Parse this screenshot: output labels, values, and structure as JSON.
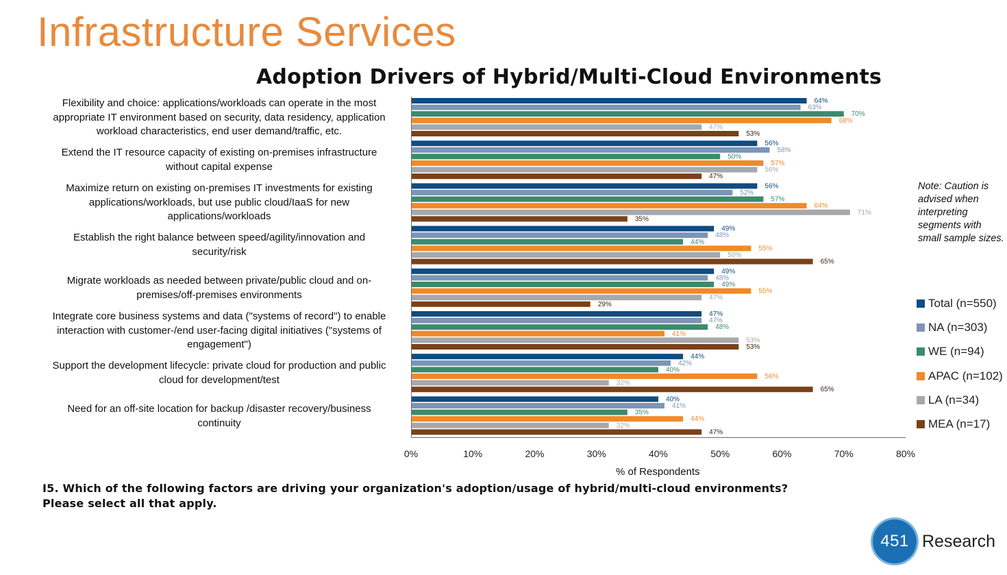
{
  "slide": {
    "title": "Infrastructure Services",
    "title_color": "#e88a3c"
  },
  "note": "Note: Caution is advised when interpreting segments with small sample sizes.",
  "question": {
    "line1": "I5. Which of the following factors are driving your organization's adoption/usage of hybrid/multi-cloud environments?",
    "line2": "Please select all that apply."
  },
  "logo": {
    "number": "451",
    "word": "Research"
  },
  "chart_data": {
    "type": "bar",
    "orientation": "horizontal",
    "title": "Adoption Drivers of Hybrid/Multi-Cloud Environments",
    "xlabel": "% of Respondents",
    "ylabel": "",
    "xlim": [
      0,
      80
    ],
    "x_ticks": [
      "0%",
      "10%",
      "20%",
      "30%",
      "40%",
      "50%",
      "60%",
      "70%",
      "80%"
    ],
    "grid": false,
    "legend_position": "right",
    "categories": [
      [
        "Flexibility and choice: applications/workloads can operate in the most",
        "appropriate IT environment based on security, data residency, application",
        "workload characteristics, end user demand/traffic, etc."
      ],
      [
        "Extend the IT resource capacity of existing on-premises infrastructure",
        "without capital expense"
      ],
      [
        "Maximize return on existing on-premises IT investments for existing",
        "applications/workloads, but use public cloud/IaaS for new",
        "applications/workloads"
      ],
      [
        "Establish the right balance between speed/agility/innovation and",
        "security/risk"
      ],
      [
        "Migrate workloads as needed between private/public cloud and on-",
        "premises/off-premises environments"
      ],
      [
        "Integrate core business systems and data (\"systems of record\") to enable",
        "interaction with customer-/end user-facing digital initiatives (\"systems of",
        "engagement\")"
      ],
      [
        "Support the development lifecycle: private cloud  for production and public",
        "cloud for development/test"
      ],
      [
        "Need for an off-site location for backup /disaster recovery/business",
        "continuity"
      ]
    ],
    "series": [
      {
        "name": "Total (n=550)",
        "color": "#0f4c81",
        "label_color": "#0f4c81",
        "values": [
          64,
          56,
          56,
          49,
          49,
          47,
          44,
          40
        ]
      },
      {
        "name": "NA (n=303)",
        "color": "#7d95b6",
        "label_color": "#7d95b6",
        "values": [
          63,
          58,
          52,
          48,
          48,
          47,
          42,
          41
        ]
      },
      {
        "name": "WE (n=94)",
        "color": "#3d8a6c",
        "label_color": "#3d8a6c",
        "values": [
          70,
          50,
          57,
          44,
          49,
          48,
          40,
          35
        ]
      },
      {
        "name": "APAC (n=102)",
        "color": "#f08a2a",
        "label_color": "#f08a2a",
        "values": [
          68,
          57,
          64,
          55,
          55,
          41,
          56,
          44
        ]
      },
      {
        "name": "LA (n=34)",
        "color": "#a6a8ab",
        "label_color": "#a6a8ab",
        "values": [
          47,
          56,
          71,
          50,
          47,
          53,
          32,
          32
        ]
      },
      {
        "name": "MEA (n=17)",
        "color": "#7a4119",
        "label_color": "#3b2314",
        "values": [
          53,
          47,
          35,
          65,
          29,
          53,
          65,
          47
        ]
      }
    ]
  }
}
